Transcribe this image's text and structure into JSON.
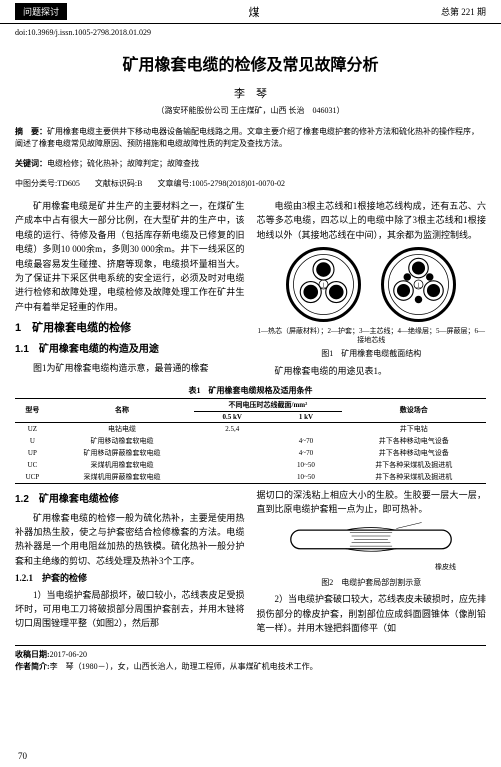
{
  "header": {
    "left_tab": "问题探讨",
    "center_char": "煤",
    "right_text": "总第 221 期"
  },
  "doi": "doi:10.3969/j.issn.1005-2798.2018.01.029",
  "title": "矿用橡套电缆的检修及常见故障分析",
  "author": "李　琴",
  "affiliation": "（潞安环能股份公司 王庄煤矿，山西 长治　046031）",
  "abstract": {
    "label": "摘　要：",
    "text": "矿用橡套电缆主要供井下移动电器设备输配电线路之用。文章主要介绍了橡套电缆护套的修补方法和硫化热补的操作程序，阐述了橡套电缆常见故障原因、预防措施和电缆故障性质的判定及查找方法。"
  },
  "keywords": {
    "label": "关键词：",
    "text": "电缆检修；硫化热补；故障判定；故障查找"
  },
  "class_line": {
    "clc": "中图分类号:TD605",
    "doc_code": "文献标识码:B",
    "article_id": "文章编号:1005-2798(2018)01-0070-02"
  },
  "left_col": {
    "intro": "矿用橡套电缆是矿井生产的主要材料之一，在煤矿生产成本中占有很大一部分比例，在大型矿井的生产中，该电缆的运行、待修及备用（包括库存新电缆及已修复的旧电缆）多则10 000余m，多则30 000余m。井下一线采区的电缆最容易发生碰撞、挤磨等现象，电缆损坏量相当大。为了保证井下采区供电系统的安全运行，必须及时对电缆进行检修和故障处理，电缆检修及故障处理工作在矿井生产中有着举足轻重的作用。",
    "h1_1": "1　矿用橡套电缆的检修",
    "h2_11": "1.1　矿用橡套电缆的构造及用途",
    "p_11": "图1为矿用橡套电缆构造示意，最普通的橡套",
    "h2_12": "1.2　矿用橡套电缆检修",
    "p_12": "矿用橡套电缆的检修一般为硫化热补，主要是使用热补器加热生胶，使之与护套密结合检修橡套的方法。电缆热补器是一个用电阻丝加热的热铁模。硫化热补一般分护套和主绝缘的剪切、芯线处理及热补3个工序。",
    "h3_121": "1.2.1　护套的检修",
    "p_121a": "1）当电缆护套局部损坏，破口较小，芯线表皮足受损坏时，可用电工刀将破损部分周围护套剖去，并用木锉将切口周围锉理平整（如图2），然后那"
  },
  "right_col": {
    "p_top": "电缆由3根主芯线和1根接地芯线构成，还有五芯、六芯等多芯电缆，四芯以上的电缆中除了3根主芯线和1根接地线以外（其接地芯线在中间），其余都为监测控制线。",
    "fig1_legend": "1—热芯（屏蔽材料）；2—护套；3—主芯线；4—绝缘层；5—屏蔽层；6—接地芯线",
    "fig1_caption": "图1　矿用橡套电缆截面结构",
    "fig1_note": "矿用橡套电缆的用途见表1。",
    "p_cut": "据切口的深浅粘上相应大小的生胶。生胶要一层大一层，直到比原电缆护套粗一点为止，即可热补。",
    "fig2_label": "橡皮线",
    "fig2_caption": "图2　电缆护套局部剖割示意",
    "p_2": "2）当电缆护套破口较大，芯线表皮未破损时，应先排损伤部分的橡皮护套，削割部位应成斜面圆锥体（像削铅笔一样）。并用木锉把斜面修平（如"
  },
  "table": {
    "title": "表1　矿用橡套电缆规格及适用条件",
    "header_main": "不同电压时芯线截面/mm²",
    "cols": {
      "type": "型号",
      "name": "名称",
      "v05": "0.5 kV",
      "v1": "1 kV",
      "place": "敷设场合"
    },
    "rows": [
      {
        "type": "UZ",
        "name": "电钻电缆",
        "v05": "2.5,4",
        "v1": "",
        "place": "井下电钻"
      },
      {
        "type": "U",
        "name": "矿用移动橡套软电缆",
        "v05": "",
        "v1": "4~70",
        "place": "井下各种移动电气设备"
      },
      {
        "type": "UP",
        "name": "矿用移动屏蔽橡套软电缆",
        "v05": "",
        "v1": "4~70",
        "place": "井下各种移动电气设备"
      },
      {
        "type": "UC",
        "name": "采煤机用橡套软电缆",
        "v05": "",
        "v1": "10~50",
        "place": "井下各种采煤机及掘进机"
      },
      {
        "type": "UCP",
        "name": "采煤机用屏蔽橡套软电缆",
        "v05": "",
        "v1": "10~50",
        "place": "井下各种采煤机及掘进机"
      }
    ]
  },
  "footer": {
    "date_label": "收稿日期:",
    "date": "2017-06-20",
    "bio_label": "作者简介:",
    "bio": "李　琴（1980－），女，山西长治人，助理工程师，从事煤矿机电技术工作。"
  },
  "page_num": "70"
}
